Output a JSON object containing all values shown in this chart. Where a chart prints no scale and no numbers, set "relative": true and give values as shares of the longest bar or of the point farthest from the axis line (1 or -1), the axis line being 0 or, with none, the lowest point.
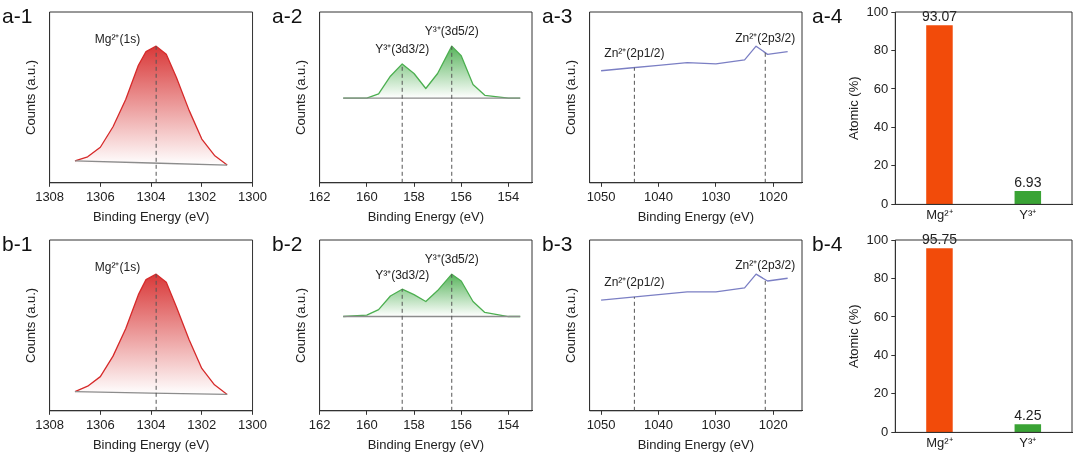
{
  "chart_data": [
    {
      "type": "line",
      "title": "a-1",
      "xlabel": "Binding Energy (eV)",
      "ylabel": "Counts (a.u.)",
      "relative": true,
      "tick_labels": "x",
      "xlim": [
        1308,
        1300
      ],
      "xticks": [
        1308,
        1306,
        1304,
        1302,
        1300
      ],
      "series": [
        {
          "color": "#8c8c8c",
          "x": [
            1307,
            1304,
            1301
          ],
          "values": [
            0.16,
            0.145,
            0.13
          ]
        },
        {
          "type": "area",
          "color": "#d62a2a",
          "x": [
            1307,
            1306.5,
            1306,
            1305.5,
            1305,
            1304.5,
            1304.2,
            1303.8,
            1303.4,
            1303,
            1302.5,
            1302,
            1301.5,
            1301
          ],
          "values": [
            0.16,
            0.19,
            0.26,
            0.41,
            0.61,
            0.86,
            0.96,
            1,
            0.94,
            0.77,
            0.53,
            0.32,
            0.2,
            0.13
          ]
        }
      ],
      "ref_lines": [
        {
          "axis": "x",
          "value": 1303.8,
          "label": "Mg²⁺(1s)",
          "line_style": "dashed"
        }
      ]
    },
    {
      "type": "line",
      "title": "a-2",
      "xlabel": "Binding Energy (eV)",
      "ylabel": "Counts (a.u.)",
      "relative": true,
      "tick_labels": "x",
      "xlim": [
        162,
        153
      ],
      "xticks": [
        162,
        160,
        158,
        156,
        154
      ],
      "series": [
        {
          "color": "#8c8c8c",
          "x": [
            161,
            157,
            153.5
          ],
          "values": [
            0.62,
            0.62,
            0.62
          ]
        },
        {
          "type": "area",
          "color": "#4caf50",
          "x": [
            161,
            160,
            159.5,
            159,
            158.5,
            158,
            157.5,
            157,
            156.4,
            156,
            155.5,
            155,
            154,
            153.5
          ],
          "values": [
            0.62,
            0.62,
            0.65,
            0.78,
            0.87,
            0.8,
            0.69,
            0.8,
            1,
            0.93,
            0.72,
            0.64,
            0.62,
            0.62
          ]
        }
      ],
      "ref_lines": [
        {
          "axis": "x",
          "value": 158.5,
          "label": "Y³⁺(3d3/2)",
          "line_style": "dashed"
        },
        {
          "axis": "x",
          "value": 156.4,
          "label": "Y³⁺(3d5/2)",
          "line_style": "dashed"
        }
      ]
    },
    {
      "type": "line",
      "title": "a-3",
      "xlabel": "Binding Energy (eV)",
      "ylabel": "Counts (a.u.)",
      "relative": true,
      "tick_labels": "x",
      "xlim": [
        1052,
        1015
      ],
      "xticks": [
        1050,
        1040,
        1030,
        1020
      ],
      "series": [
        {
          "color": "#7b7fc4",
          "x": [
            1050,
            1045,
            1040,
            1035,
            1030,
            1025,
            1023,
            1021,
            1017.5
          ],
          "values": [
            0.82,
            0.84,
            0.86,
            0.88,
            0.87,
            0.9,
            1,
            0.94,
            0.96
          ]
        }
      ],
      "ref_lines": [
        {
          "axis": "x",
          "value": 1044.2,
          "label": "Zn²⁺(2p1/2)",
          "line_style": "dashed"
        },
        {
          "axis": "x",
          "value": 1021.4,
          "label": "Zn²⁺(2p3/2)",
          "line_style": "dashed"
        }
      ]
    },
    {
      "type": "bar",
      "title": "a-4",
      "ylabel": "Atomic (%)",
      "categories": [
        "Mg²⁺",
        "Y³⁺"
      ],
      "values": [
        93.07,
        6.93
      ],
      "colors": [
        "#f24b0a",
        "#3aa335"
      ],
      "ylim": [
        0,
        100
      ],
      "yticks": [
        0,
        20,
        40,
        60,
        80,
        100
      ],
      "data_labels": true
    },
    {
      "type": "line",
      "title": "b-1",
      "xlabel": "Binding Energy (eV)",
      "ylabel": "Counts (a.u.)",
      "relative": true,
      "tick_labels": "x",
      "xlim": [
        1308,
        1300
      ],
      "xticks": [
        1308,
        1306,
        1304,
        1302,
        1300
      ],
      "series": [
        {
          "color": "#8c8c8c",
          "x": [
            1307,
            1304,
            1301
          ],
          "values": [
            0.14,
            0.13,
            0.12
          ]
        },
        {
          "type": "area",
          "color": "#d62a2a",
          "x": [
            1307,
            1306.5,
            1306,
            1305.5,
            1305,
            1304.5,
            1304.2,
            1303.8,
            1303.4,
            1303,
            1302.5,
            1302,
            1301.5,
            1301
          ],
          "values": [
            0.14,
            0.18,
            0.25,
            0.4,
            0.6,
            0.85,
            0.96,
            1,
            0.94,
            0.76,
            0.52,
            0.31,
            0.19,
            0.12
          ]
        }
      ],
      "ref_lines": [
        {
          "axis": "x",
          "value": 1303.8,
          "label": "Mg²⁺(1s)",
          "line_style": "dashed"
        }
      ]
    },
    {
      "type": "line",
      "title": "b-2",
      "xlabel": "Binding Energy (eV)",
      "ylabel": "Counts (a.u.)",
      "relative": true,
      "tick_labels": "x",
      "xlim": [
        162,
        153
      ],
      "xticks": [
        162,
        160,
        158,
        156,
        154
      ],
      "series": [
        {
          "color": "#8c8c8c",
          "x": [
            161,
            157,
            153.5
          ],
          "values": [
            0.69,
            0.69,
            0.69
          ]
        },
        {
          "type": "area",
          "color": "#4caf50",
          "x": [
            161,
            160,
            159.5,
            159,
            158.5,
            158,
            157.5,
            157,
            156.4,
            156,
            155.5,
            155,
            154,
            153.5
          ],
          "values": [
            0.69,
            0.7,
            0.74,
            0.84,
            0.89,
            0.85,
            0.8,
            0.88,
            1,
            0.95,
            0.8,
            0.72,
            0.69,
            0.69
          ]
        }
      ],
      "ref_lines": [
        {
          "axis": "x",
          "value": 158.5,
          "label": "Y³⁺(3d3/2)",
          "line_style": "dashed"
        },
        {
          "axis": "x",
          "value": 156.4,
          "label": "Y³⁺(3d5/2)",
          "line_style": "dashed"
        }
      ]
    },
    {
      "type": "line",
      "title": "b-3",
      "xlabel": "Binding Energy (eV)",
      "ylabel": "Counts (a.u.)",
      "relative": true,
      "tick_labels": "x",
      "xlim": [
        1052,
        1015
      ],
      "xticks": [
        1050,
        1040,
        1030,
        1020
      ],
      "series": [
        {
          "color": "#7b7fc4",
          "x": [
            1050,
            1045,
            1040,
            1035,
            1030,
            1025,
            1023,
            1021,
            1017.5
          ],
          "values": [
            0.81,
            0.83,
            0.85,
            0.87,
            0.87,
            0.9,
            1,
            0.95,
            0.97
          ]
        }
      ],
      "ref_lines": [
        {
          "axis": "x",
          "value": 1044.2,
          "label": "Zn²⁺(2p1/2)",
          "line_style": "dashed"
        },
        {
          "axis": "x",
          "value": 1021.4,
          "label": "Zn²⁺(2p3/2)",
          "line_style": "dashed"
        }
      ]
    },
    {
      "type": "bar",
      "title": "b-4",
      "ylabel": "Atomic (%)",
      "categories": [
        "Mg²⁺",
        "Y³⁺"
      ],
      "values": [
        95.75,
        4.25
      ],
      "colors": [
        "#f24b0a",
        "#3aa335"
      ],
      "ylim": [
        0,
        100
      ],
      "yticks": [
        0,
        20,
        40,
        60,
        80,
        100
      ],
      "data_labels": true
    }
  ]
}
